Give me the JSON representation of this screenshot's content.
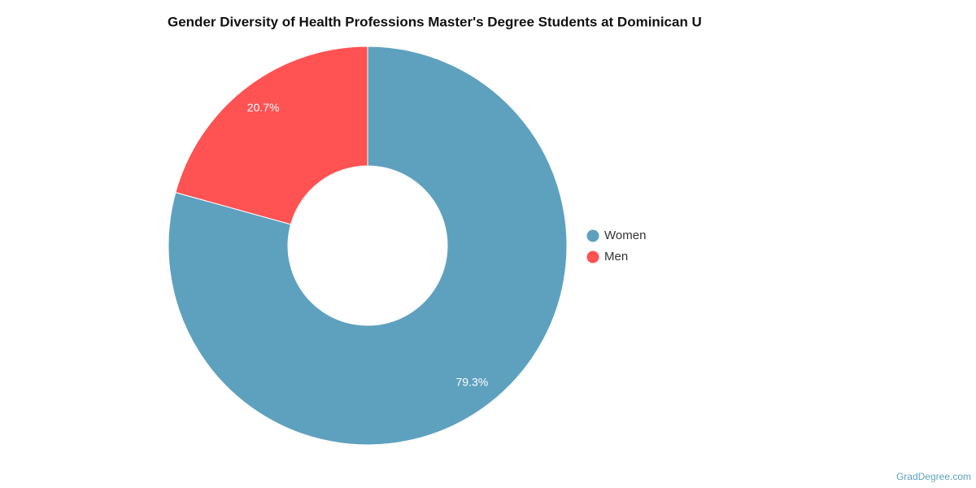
{
  "chart_data": {
    "type": "donut",
    "title": "Gender Diversity of Health Professions Master's Degree Students at Dominican U",
    "categories": [
      "Women",
      "Men"
    ],
    "values": [
      79.3,
      20.7
    ],
    "value_labels": [
      "79.3%",
      "20.7%"
    ],
    "colors": [
      "#5ea1bf",
      "#fe5253"
    ],
    "legend": "right",
    "source": "GradDegree.com"
  }
}
